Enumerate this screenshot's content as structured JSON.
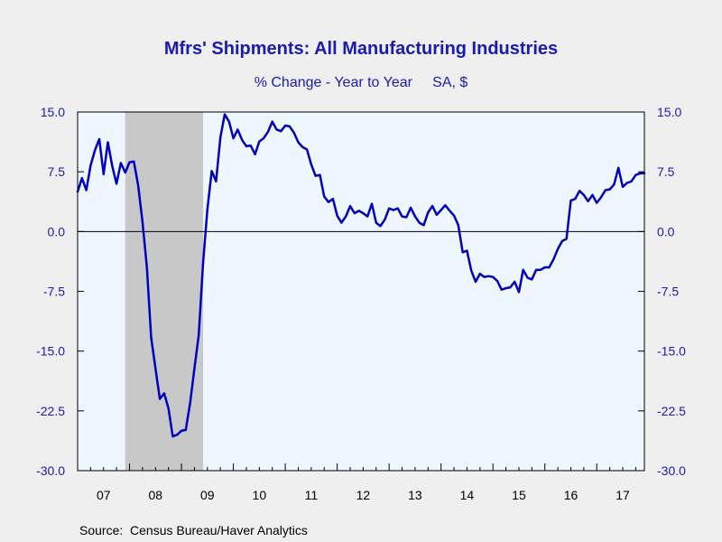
{
  "chart_data": {
    "type": "line",
    "title": "Mfrs' Shipments: All Manufacturing Industries",
    "subtitle": "% Change - Year to Year     SA, $",
    "source": "Source:  Census Bureau/Haver Analytics",
    "xlabel": "",
    "ylabel": "",
    "ylim": [
      -30.0,
      15.0
    ],
    "xlim": [
      2007.0,
      2017.917
    ],
    "y_ticks": [
      "15.0",
      "7.5",
      "0.0",
      "-7.5",
      "-15.0",
      "-22.5",
      "-30.0"
    ],
    "y_tick_values": [
      15.0,
      7.5,
      0.0,
      -7.5,
      -15.0,
      -22.5,
      -30.0
    ],
    "x_tick_labels": [
      "07",
      "08",
      "09",
      "10",
      "11",
      "12",
      "13",
      "14",
      "15",
      "16",
      "17"
    ],
    "recession": {
      "start": 2007.917,
      "end": 2009.417
    },
    "grid": false,
    "zero_line": true,
    "colors": {
      "line": "#0000c0",
      "plot_bg": "#eef6ff",
      "recession": "#c8c8c8",
      "text": "#1a1ab4"
    },
    "series": [
      {
        "x": [
          2007.0,
          2007.083,
          2007.167,
          2007.25,
          2007.333,
          2007.417,
          2007.5,
          2007.583,
          2007.667,
          2007.75,
          2007.833,
          2007.917,
          2008.0,
          2008.083,
          2008.167,
          2008.25,
          2008.333,
          2008.417,
          2008.5,
          2008.583,
          2008.667,
          2008.75,
          2008.833,
          2008.917,
          2009.0,
          2009.083,
          2009.167,
          2009.25,
          2009.333,
          2009.417,
          2009.5,
          2009.583,
          2009.667,
          2009.75,
          2009.833,
          2009.917,
          2010.0,
          2010.083,
          2010.167,
          2010.25,
          2010.333,
          2010.417,
          2010.5,
          2010.583,
          2010.667,
          2010.75,
          2010.833,
          2010.917,
          2011.0,
          2011.083,
          2011.167,
          2011.25,
          2011.333,
          2011.417,
          2011.5,
          2011.583,
          2011.667,
          2011.75,
          2011.833,
          2011.917,
          2012.0,
          2012.083,
          2012.167,
          2012.25,
          2012.333,
          2012.417,
          2012.5,
          2012.583,
          2012.667,
          2012.75,
          2012.833,
          2012.917,
          2013.0,
          2013.083,
          2013.167,
          2013.25,
          2013.333,
          2013.417,
          2013.5,
          2013.583,
          2013.667,
          2013.75,
          2013.833,
          2013.917,
          2014.0,
          2014.083,
          2014.167,
          2014.25,
          2014.333,
          2014.417,
          2014.5,
          2014.583,
          2014.667,
          2014.75,
          2014.833,
          2014.917,
          2015.0,
          2015.083,
          2015.167,
          2015.25,
          2015.333,
          2015.417,
          2015.5,
          2015.583,
          2015.667,
          2015.75,
          2015.833,
          2015.917,
          2016.0,
          2016.083,
          2016.167,
          2016.25,
          2016.333,
          2016.417,
          2016.5,
          2016.583,
          2016.667,
          2016.75,
          2016.833,
          2016.917,
          2017.0,
          2017.083,
          2017.167,
          2017.25,
          2017.333,
          2017.417,
          2017.5,
          2017.583,
          2017.667,
          2017.75,
          2017.833,
          2017.917
        ],
        "y": [
          5.0,
          6.7,
          5.2,
          8.3,
          10.2,
          11.6,
          7.2,
          11.2,
          8.2,
          6.0,
          8.6,
          7.4,
          8.7,
          8.8,
          5.8,
          1.2,
          -4.4,
          -13.3,
          -17.2,
          -21.0,
          -20.3,
          -22.2,
          -25.7,
          -25.5,
          -25.0,
          -24.9,
          -21.5,
          -17.2,
          -13.0,
          -4.0,
          2.8,
          7.6,
          6.3,
          11.8,
          14.7,
          13.8,
          11.7,
          12.8,
          11.5,
          10.7,
          10.8,
          9.7,
          11.3,
          11.7,
          12.5,
          13.8,
          12.8,
          12.6,
          13.3,
          13.2,
          12.4,
          11.2,
          10.6,
          10.3,
          8.4,
          7.0,
          7.1,
          4.4,
          3.7,
          4.1,
          2.0,
          1.1,
          1.9,
          3.2,
          2.3,
          2.6,
          2.3,
          1.9,
          3.5,
          1.1,
          0.7,
          1.5,
          2.9,
          2.7,
          2.9,
          1.9,
          1.8,
          3.0,
          1.9,
          1.1,
          0.8,
          2.4,
          3.2,
          2.1,
          2.7,
          3.3,
          2.6,
          2.0,
          0.8,
          -2.6,
          -2.4,
          -4.9,
          -6.3,
          -5.3,
          -5.7,
          -5.6,
          -5.7,
          -6.2,
          -7.3,
          -7.1,
          -7.0,
          -6.3,
          -7.6,
          -4.8,
          -5.8,
          -6.0,
          -4.8,
          -4.8,
          -4.5,
          -4.5,
          -3.5,
          -2.2,
          -1.2,
          -0.9,
          3.9,
          4.1,
          5.1,
          4.6,
          3.8,
          4.6,
          3.6,
          4.3,
          5.2,
          5.3,
          5.9,
          8.0,
          5.6,
          6.1,
          6.3,
          7.1,
          7.3,
          7.3
        ]
      }
    ]
  }
}
